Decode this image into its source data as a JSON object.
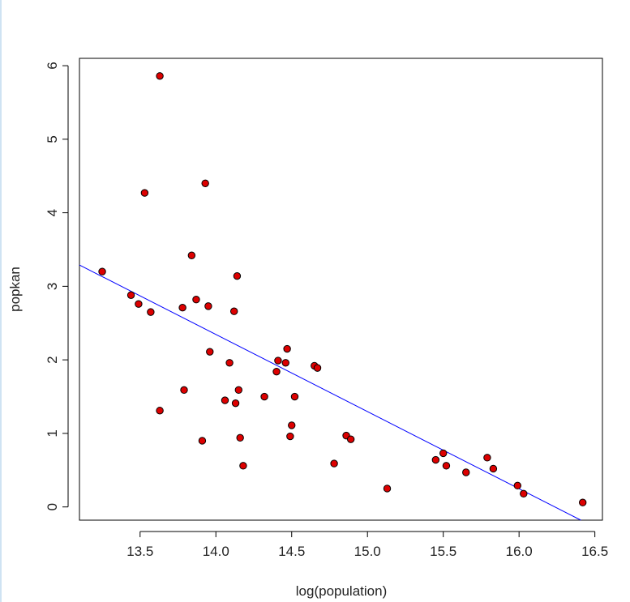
{
  "chart_data": {
    "type": "scatter",
    "title": "",
    "xlabel": "log(population)",
    "ylabel": "popkan",
    "xlim": [
      13.1,
      16.55
    ],
    "ylim": [
      -0.18,
      6.1
    ],
    "xticks": [
      13.5,
      14.0,
      14.5,
      15.0,
      15.5,
      16.0,
      16.5
    ],
    "xtick_labels": [
      "13.5",
      "14.0",
      "14.5",
      "15.0",
      "15.5",
      "16.0",
      "16.5"
    ],
    "yticks": [
      0,
      1,
      2,
      3,
      4,
      5,
      6
    ],
    "ytick_labels": [
      "0",
      "1",
      "2",
      "3",
      "4",
      "5",
      "6"
    ],
    "grid": false,
    "series": [
      {
        "marker": "circle",
        "fill_color": "#dd0000",
        "edge_color": "#000000",
        "points": [
          [
            13.25,
            3.2
          ],
          [
            13.44,
            2.88
          ],
          [
            13.49,
            2.76
          ],
          [
            13.53,
            4.27
          ],
          [
            13.57,
            2.65
          ],
          [
            13.63,
            5.86
          ],
          [
            13.63,
            1.31
          ],
          [
            13.78,
            2.71
          ],
          [
            13.79,
            1.59
          ],
          [
            13.84,
            3.42
          ],
          [
            13.87,
            2.82
          ],
          [
            13.91,
            0.9
          ],
          [
            13.93,
            4.4
          ],
          [
            13.95,
            2.73
          ],
          [
            13.96,
            2.11
          ],
          [
            14.06,
            1.45
          ],
          [
            14.09,
            1.96
          ],
          [
            14.12,
            2.66
          ],
          [
            14.13,
            1.41
          ],
          [
            14.14,
            3.14
          ],
          [
            14.15,
            1.59
          ],
          [
            14.16,
            0.94
          ],
          [
            14.18,
            0.56
          ],
          [
            14.32,
            1.5
          ],
          [
            14.4,
            1.84
          ],
          [
            14.41,
            1.99
          ],
          [
            14.46,
            1.96
          ],
          [
            14.47,
            2.15
          ],
          [
            14.49,
            0.96
          ],
          [
            14.5,
            1.11
          ],
          [
            14.52,
            1.5
          ],
          [
            14.65,
            1.92
          ],
          [
            14.67,
            1.89
          ],
          [
            14.78,
            0.59
          ],
          [
            14.86,
            0.97
          ],
          [
            14.89,
            0.92
          ],
          [
            15.13,
            0.25
          ],
          [
            15.45,
            0.64
          ],
          [
            15.5,
            0.73
          ],
          [
            15.52,
            0.56
          ],
          [
            15.65,
            0.47
          ],
          [
            15.79,
            0.67
          ],
          [
            15.83,
            0.52
          ],
          [
            15.99,
            0.29
          ],
          [
            16.03,
            0.18
          ],
          [
            16.42,
            0.06
          ]
        ]
      }
    ],
    "regression_line": {
      "color": "#0000ff",
      "intercept": 17.03,
      "slope": -1.0489
    }
  }
}
